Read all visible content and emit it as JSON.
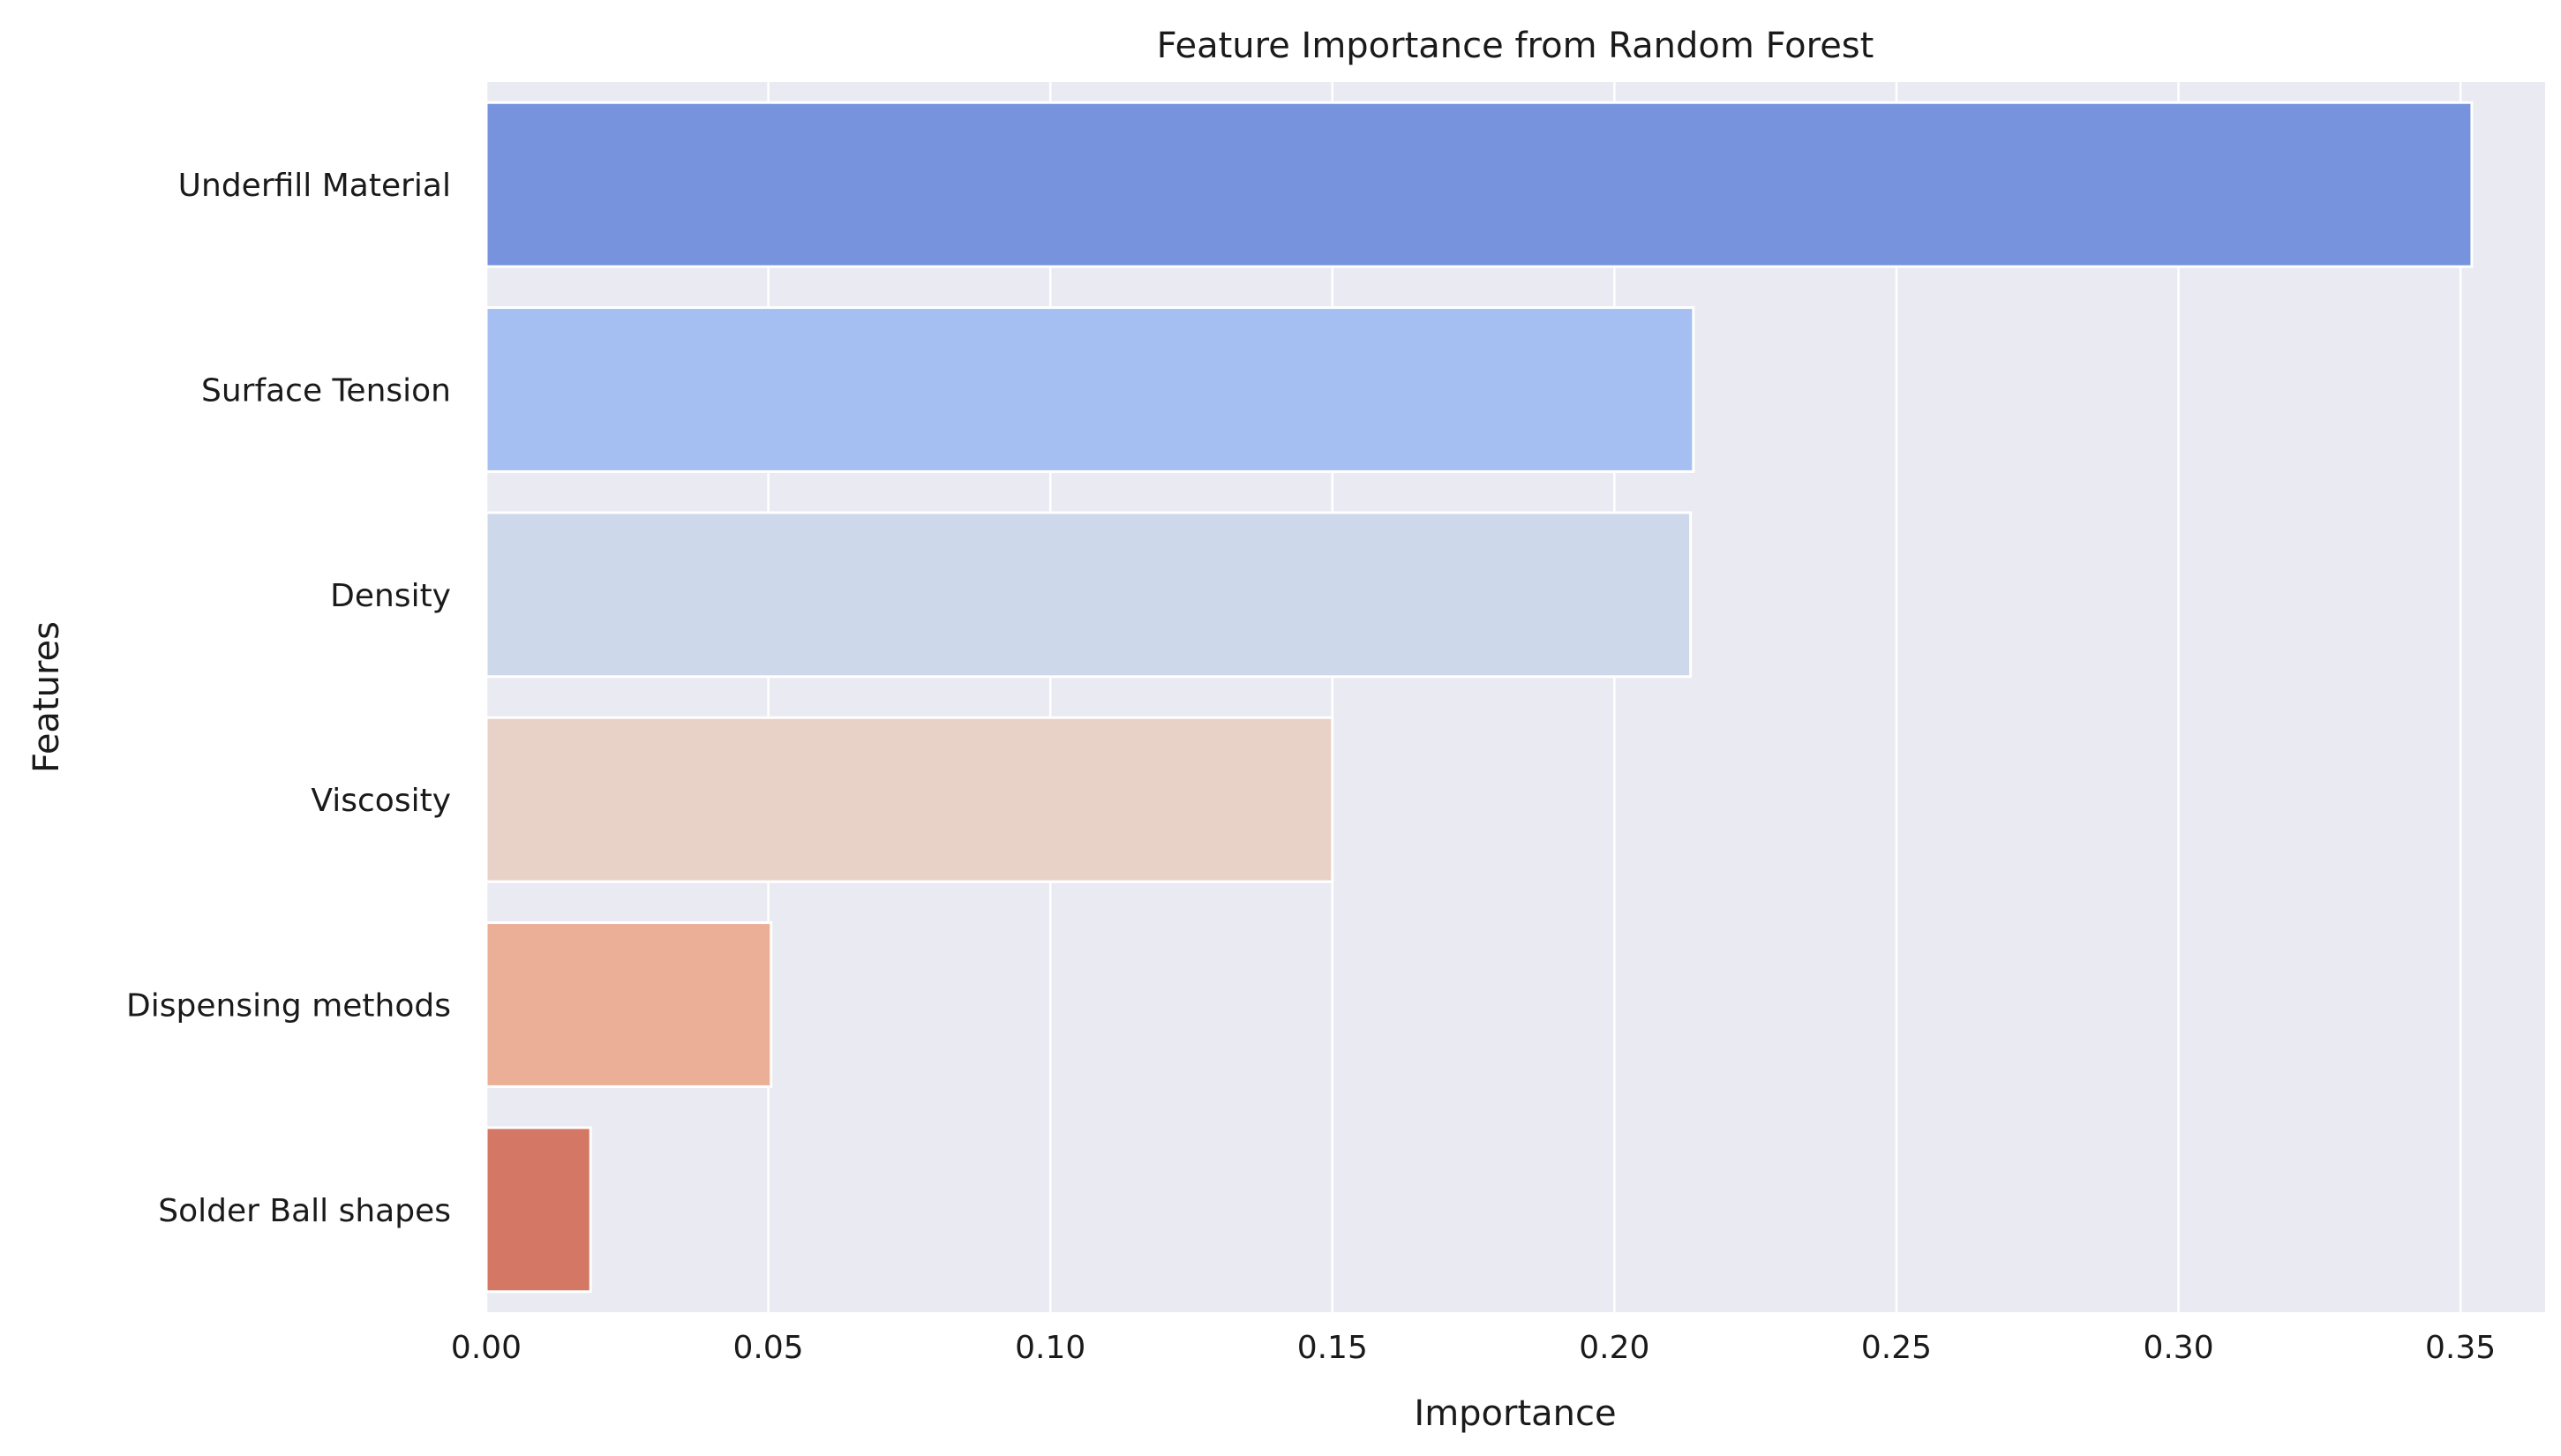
{
  "chart_data": {
    "type": "bar",
    "orientation": "horizontal",
    "title": "Feature Importance from Random Forest",
    "xlabel": "Importance",
    "ylabel": "Features",
    "categories": [
      "Underfill Material",
      "Surface Tension",
      "Density",
      "Viscosity",
      "Dispensing methods",
      "Solder Ball shapes"
    ],
    "values": [
      0.352,
      0.214,
      0.2135,
      0.15,
      0.0505,
      0.0185
    ],
    "colors": [
      "#7793dd",
      "#a5bff3",
      "#cdd8eb",
      "#e8d2c8",
      "#ebaf98",
      "#d47865"
    ],
    "xlim": [
      0,
      0.365
    ],
    "xticks": [
      0.0,
      0.05,
      0.1,
      0.15,
      0.2,
      0.25,
      0.3,
      0.35
    ],
    "xtick_labels": [
      "0.00",
      "0.05",
      "0.10",
      "0.15",
      "0.20",
      "0.25",
      "0.30",
      "0.35"
    ],
    "grid": true,
    "background": "#eaeaf2"
  }
}
